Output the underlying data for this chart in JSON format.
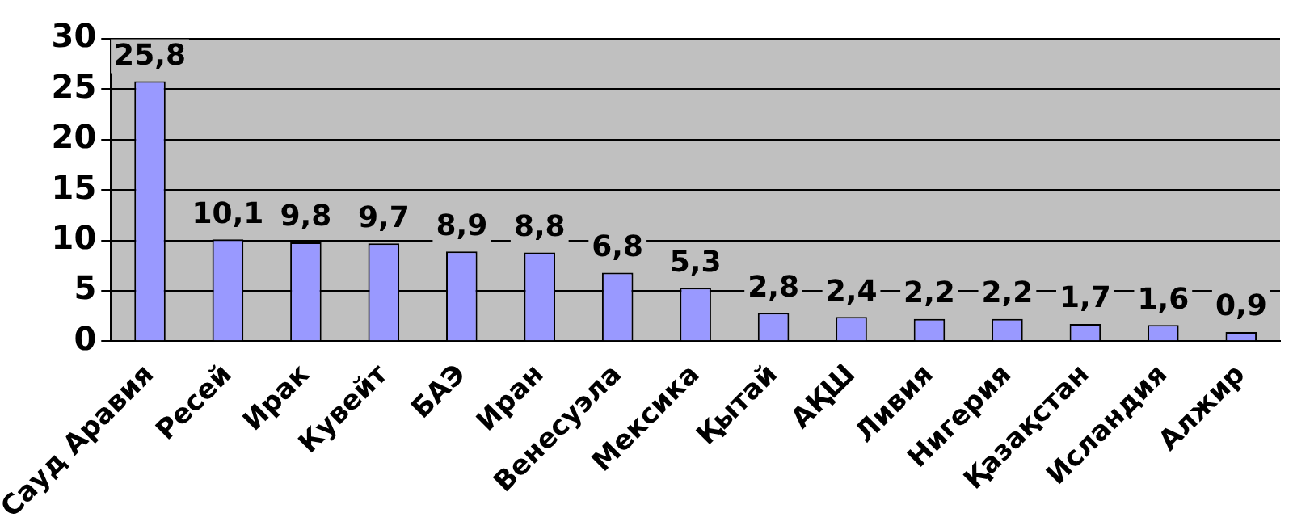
{
  "chart_data": {
    "type": "bar",
    "categories": [
      "Сауд Аравия",
      "Ресей",
      "Ирак",
      "Кувейт",
      "БАЭ",
      "Иран",
      "Венесуэла",
      "Мексика",
      "Қытай",
      "АҚШ",
      "Ливия",
      "Нигерия",
      "Қазақстан",
      "Исландия",
      "Алжир"
    ],
    "values": [
      25.8,
      10.1,
      9.8,
      9.7,
      8.9,
      8.8,
      6.8,
      5.3,
      2.8,
      2.4,
      2.2,
      2.2,
      1.7,
      1.6,
      0.9
    ],
    "value_labels": [
      "25,8",
      "10,1",
      "9,8",
      "9,7",
      "8,9",
      "8,8",
      "6,8",
      "5,3",
      "2,8",
      "2,4",
      "2,2",
      "2,2",
      "1,7",
      "1,6",
      "0,9"
    ],
    "color": "#9999ff",
    "ylim": [
      0,
      30
    ],
    "yticks": [
      0,
      5,
      10,
      15,
      20,
      25,
      30
    ],
    "grid": "y",
    "legend": false
  }
}
